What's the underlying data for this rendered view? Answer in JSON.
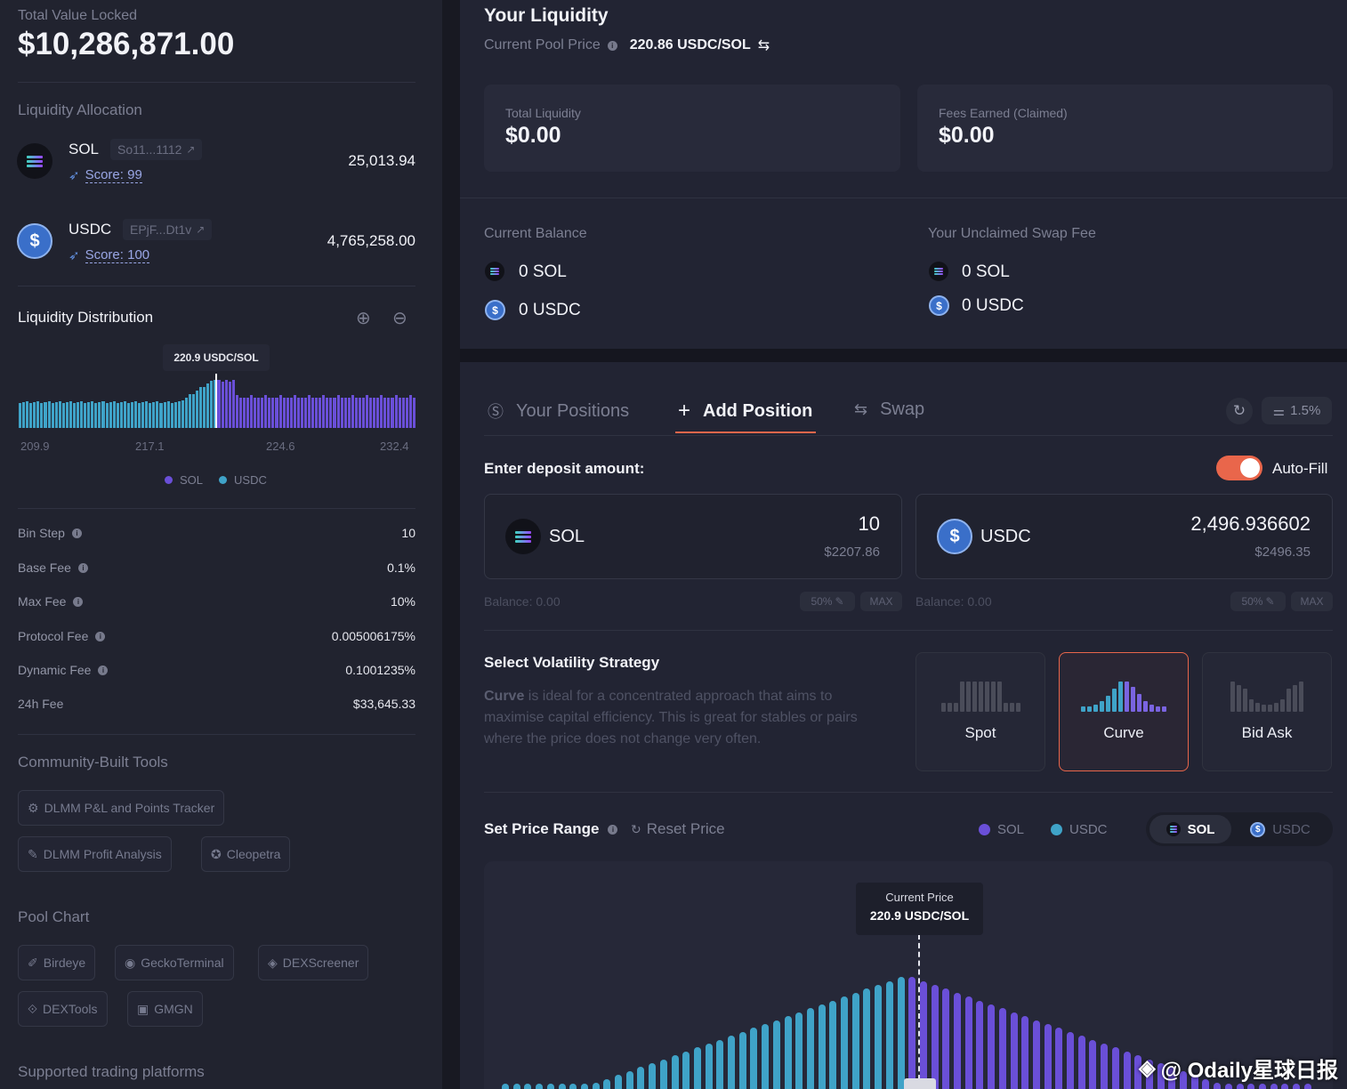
{
  "left": {
    "tvl_label": "Total Value Locked",
    "tvl_value": "$10,286,871.00",
    "alloc_title": "Liquidity Allocation",
    "tokens": [
      {
        "symbol": "SOL",
        "address": "So11...1112",
        "score": "Score: 99",
        "amount": "25,013.94"
      },
      {
        "symbol": "USDC",
        "address": "EPjF...Dt1v",
        "score": "Score: 100",
        "amount": "4,765,258.00"
      }
    ],
    "dist_title": "Liquidity Distribution",
    "dist_tooltip": "220.9 USDC/SOL",
    "dist_ticks": [
      "209.9",
      "217.1",
      "224.6",
      "232.4"
    ],
    "dist_legend": [
      "SOL",
      "USDC"
    ],
    "fees": [
      {
        "label": "Bin Step",
        "value": "10",
        "info": true
      },
      {
        "label": "Base Fee",
        "value": "0.1%",
        "info": true
      },
      {
        "label": "Max Fee",
        "value": "10%",
        "info": true
      },
      {
        "label": "Protocol Fee",
        "value": "0.005006175%",
        "info": true
      },
      {
        "label": "Dynamic Fee",
        "value": "0.1001235%",
        "info": true
      },
      {
        "label": "24h Fee",
        "value": "$33,645.33",
        "info": false
      }
    ],
    "tools_title": "Community-Built Tools",
    "tools": [
      "DLMM P&L and Points Tracker",
      "DLMM Profit Analysis",
      "Cleopetra"
    ],
    "pool_chart_title": "Pool Chart",
    "pool_charts": [
      "Birdeye",
      "GeckoTerminal",
      "DEXScreener",
      "DEXTools",
      "GMGN"
    ],
    "platforms_title": "Supported trading platforms"
  },
  "liquidity": {
    "title": "Your Liquidity",
    "pool_price_label": "Current Pool Price",
    "pool_price_value": "220.86 USDC/SOL",
    "total_label": "Total Liquidity",
    "total_value": "$0.00",
    "fees_label": "Fees Earned (Claimed)",
    "fees_value": "$0.00",
    "balance_title": "Current Balance",
    "balance_sol": "0 SOL",
    "balance_usdc": "0 USDC",
    "unclaimed_title": "Your Unclaimed Swap Fee",
    "unclaimed_sol": "0 SOL",
    "unclaimed_usdc": "0 USDC"
  },
  "positions": {
    "tabs": [
      "Your Positions",
      "Add Position",
      "Swap"
    ],
    "slippage": "1.5%",
    "deposit_label": "Enter deposit amount:",
    "autofill_label": "Auto-Fill",
    "sol_input": {
      "symbol": "SOL",
      "amount": "10",
      "usd": "$2207.86",
      "balance": "Balance: 0.00"
    },
    "usdc_input": {
      "symbol": "USDC",
      "amount": "2,496.936602",
      "usd": "$2496.35",
      "balance": "Balance: 0.00"
    },
    "half_label": "50%",
    "max_label": "MAX",
    "strategy_title": "Select Volatility Strategy",
    "strategy_keyword": "Curve",
    "strategy_desc": " is ideal for a concentrated approach that aims to maximise capital efficiency. This is great for stables or pairs where the price does not change very often.",
    "strategies": [
      "Spot",
      "Curve",
      "Bid Ask"
    ],
    "price_range_title": "Set Price Range",
    "reset_label": "Reset Price",
    "legend": [
      "SOL",
      "USDC"
    ],
    "toggle": [
      "SOL",
      "USDC"
    ],
    "current_price_label": "Current Price",
    "current_price_value": "220.9 USDC/SOL"
  },
  "watermark": "@ Odaily星球日报",
  "colors": {
    "sol": "#6a4fd8",
    "usdc": "#3fa3c8",
    "accent": "#e9664b",
    "bg": "#222433"
  }
}
